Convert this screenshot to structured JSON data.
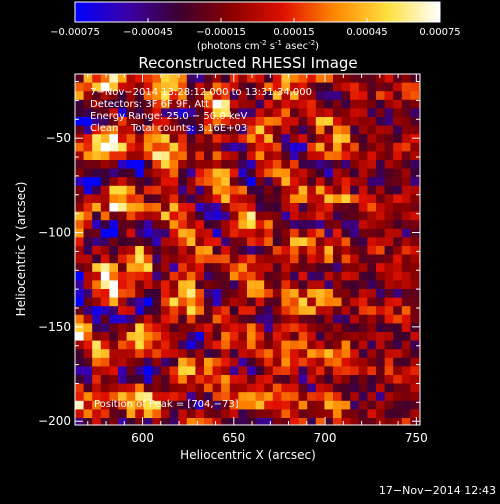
{
  "colorbar": {
    "ticks": [
      "-0.00075",
      "-0.00045",
      "-0.00015",
      "0.00015",
      "0.00045",
      "0.00075"
    ],
    "unit_open": "(photons cm",
    "unit_exp1": "-2",
    "unit_mid": " s",
    "unit_exp2": "-1",
    "unit_mid2": " asec",
    "unit_exp3": "-2",
    "unit_close": ")",
    "stops": [
      "#0000ff",
      "#3a00a8",
      "#3c0030",
      "#8a0000",
      "#e01000",
      "#ff8a00",
      "#ffe040",
      "#ffffff"
    ]
  },
  "chart_data": {
    "type": "heatmap",
    "title": "Reconstructed RHESSI Image",
    "xlabel": "Heliocentric X (arcsec)",
    "ylabel": "Heliocentric Y (arcsec)",
    "xlim": [
      563,
      752
    ],
    "ylim": [
      -202,
      -16
    ],
    "xticks": [
      "600",
      "650",
      "700",
      "750"
    ],
    "yticks": [
      "−50",
      "−100",
      "−150",
      "−200"
    ],
    "xtick_values": [
      600,
      650,
      700,
      750
    ],
    "ytick_values": [
      -50,
      -100,
      -150,
      -200
    ],
    "value_range": [
      -0.00075,
      0.00075
    ],
    "grid": false,
    "annotations": [
      "7−Nov−2014 13:28:12.000 to 13:31:34.000",
      "Detectors: 3F 6F 9F, Att 0",
      "Energy Range: 25.0 − 50.0 keV",
      "Clean    Total counts: 3.16E+03",
      "Position of Peak = [704,−73]"
    ],
    "peak_position": [
      704,
      -73
    ]
  },
  "footer": {
    "timestamp": "17−Nov−2014 12:43"
  }
}
